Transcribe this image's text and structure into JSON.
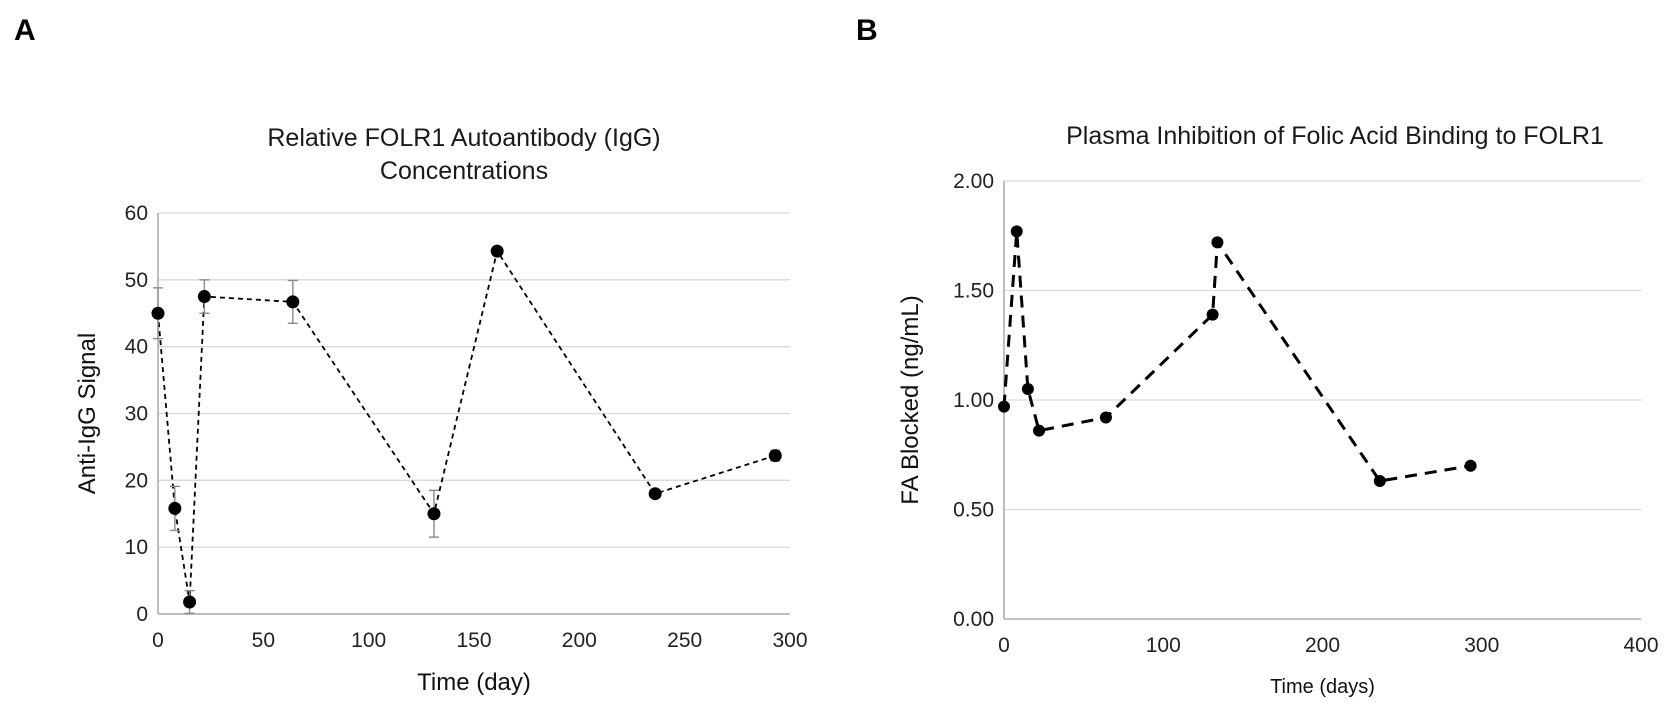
{
  "panels": [
    {
      "letter": "A"
    },
    {
      "letter": "B"
    }
  ],
  "chart_data": [
    {
      "type": "scatter",
      "title_lines": [
        "Relative FOLR1 Autoantibody (IgG)",
        "Concentrations"
      ],
      "xlabel": "Time (day)",
      "ylabel": "Anti-IgG Signal",
      "xlim": [
        0,
        300
      ],
      "ylim": [
        0,
        60
      ],
      "xticks": [
        0,
        50,
        100,
        150,
        200,
        250,
        300
      ],
      "yticks": [
        0,
        10,
        20,
        30,
        40,
        50,
        60
      ],
      "grid": true,
      "line_style": "dashed",
      "series": [
        {
          "x": [
            0,
            8,
            15,
            22,
            64,
            131,
            161,
            236,
            293
          ],
          "y": [
            45,
            15.8,
            1.8,
            47.5,
            46.7,
            15,
            54.3,
            18,
            23.7
          ],
          "error": [
            3.8,
            3.3,
            1.7,
            2.5,
            3.2,
            3.5,
            0.5,
            0.6,
            0.8
          ]
        }
      ]
    },
    {
      "type": "scatter",
      "title": "Plasma Inhibition of Folic Acid Binding to FOLR1",
      "xlabel": "Time (days)",
      "ylabel": "FA Blocked (ng/mL)",
      "xlim": [
        0,
        400
      ],
      "ylim": [
        0,
        2
      ],
      "xticks": [
        0,
        100,
        200,
        300,
        400
      ],
      "yticks": [
        0,
        0.5,
        1,
        1.5,
        2
      ],
      "ytick_labels": [
        "0.00",
        "0.50",
        "1.00",
        "1.50",
        "2.00"
      ],
      "grid": true,
      "line_style": "dashed",
      "series": [
        {
          "x": [
            0,
            8,
            15,
            22,
            64,
            131,
            134,
            236,
            293
          ],
          "y": [
            0.97,
            1.77,
            1.05,
            0.86,
            0.92,
            1.39,
            1.72,
            0.63,
            0.7
          ]
        }
      ]
    }
  ]
}
